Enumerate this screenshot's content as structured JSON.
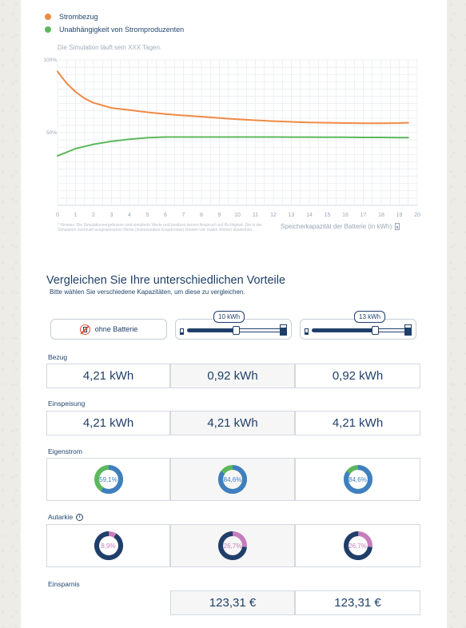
{
  "colors": {
    "navy": "#1f3f6a",
    "orange": "#ef8a44",
    "green": "#5cb85c",
    "blue_ring": "#3f7fbf",
    "pink_ring": "#c77dbb",
    "dark_ring": "#1f3f6a"
  },
  "legend": [
    {
      "label": "Strombezug",
      "color": "#ef8a44"
    },
    {
      "label": "Unabhängigkeit von Stromproduzenten",
      "color": "#5cb85c"
    }
  ],
  "chart": {
    "note": "Die Simulation läuft sein XXX Tagen.",
    "disclaimer": "* Hinweis: Die Simulationsergebnisse sind simulierte Werte und besitzen keinen Anspruch auf Richtigkeit. Die in der Simulation eventuell ausgewiesenen Werte (insbesondere Ersparnisse) können von realen Werten abweichen.",
    "x_axis_title": "Speicherkapazität der Batterie (in kWh)"
  },
  "chart_data": {
    "type": "line",
    "x": [
      0,
      0.5,
      1,
      1.5,
      2,
      3,
      4,
      5,
      6,
      7,
      8,
      9,
      10,
      11,
      12,
      13,
      14,
      15,
      16,
      17,
      18,
      19,
      19.5
    ],
    "series": [
      {
        "name": "Strombezug",
        "color": "#ef8a44",
        "values": [
          92,
          84,
          78,
          73.5,
          70.5,
          67,
          65.5,
          64,
          62.8,
          61.8,
          61,
          60,
          59.2,
          58.5,
          57.9,
          57.4,
          57,
          56.8,
          56.6,
          56.5,
          56.5,
          56.6,
          56.8
        ]
      },
      {
        "name": "Unabhängigkeit von Stromproduzenten",
        "color": "#5cb85c",
        "values": [
          34,
          36.5,
          39,
          40.5,
          42,
          44,
          45.5,
          46.5,
          47,
          47,
          47,
          47,
          47,
          47,
          47,
          46.9,
          46.9,
          46.8,
          46.8,
          46.7,
          46.7,
          46.6,
          46.6
        ]
      }
    ],
    "xlim": [
      0,
      20
    ],
    "ylim": [
      0,
      100
    ],
    "x_ticks": [
      "0",
      "1",
      "2",
      "3",
      "4",
      "5",
      "6",
      "7",
      "8",
      "9",
      "10",
      "11",
      "12",
      "13",
      "14",
      "15",
      "16",
      "17",
      "18",
      "19",
      "20"
    ],
    "y_ticks": [
      {
        "value": 100,
        "label": "100%"
      },
      {
        "value": 50,
        "label": "50%"
      }
    ],
    "grid": true
  },
  "compare": {
    "title": "Vergleichen Sie Ihre unterschiedlichen Vorteile",
    "subtitle": "Bitte wählen Sie verschiedene Kapazitäten, um diese zu vergleichen.",
    "no_battery_label": "ohne Batterie",
    "sliders": [
      {
        "label": "10 kWh",
        "value_fraction": 0.5
      },
      {
        "label": "13 kWh",
        "value_fraction": 0.65
      }
    ],
    "rows": {
      "bezug": {
        "label": "Bezug",
        "values": [
          "4,21 kWh",
          "0,92 kWh",
          "0,92 kWh"
        ]
      },
      "einspeisung": {
        "label": "Einspeisung",
        "values": [
          "4,21 kWh",
          "4,21 kWh",
          "4,21 kWh"
        ]
      },
      "eigenstrom": {
        "label": "Eigenstrom",
        "values": [
          "59,1%",
          "84,6%",
          "84,6%"
        ],
        "fractions": [
          0.591,
          0.846,
          0.846
        ]
      },
      "autarkie": {
        "label": "Autarkie",
        "values": [
          "8,9%",
          "26,7%",
          "26,7%"
        ],
        "fractions": [
          0.089,
          0.267,
          0.267
        ]
      },
      "einsparnis": {
        "label": "Einsparnis",
        "values": [
          "",
          "123,31 €",
          "123,31 €"
        ]
      }
    }
  }
}
